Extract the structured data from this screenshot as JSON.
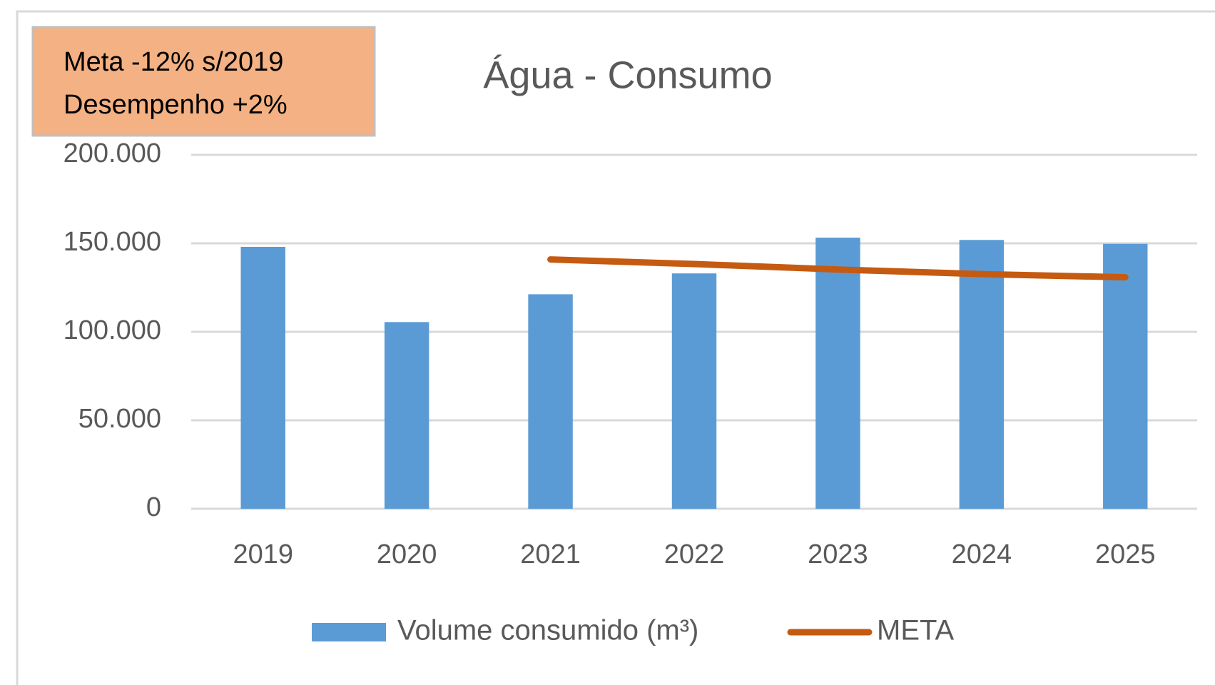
{
  "chart_data": {
    "type": "bar",
    "title": "Água - Consumo",
    "annotations": [
      "Meta -12% s/2019",
      "Desempenho +2%"
    ],
    "categories": [
      "2019",
      "2020",
      "2021",
      "2022",
      "2023",
      "2024",
      "2025"
    ],
    "series": [
      {
        "name": "Volume consumido (m³)",
        "type": "bar",
        "color": "#5b9bd5",
        "values": [
          148000,
          105500,
          121200,
          133000,
          153200,
          151900,
          149700
        ]
      },
      {
        "name": "META",
        "type": "line",
        "color": "#c55a11",
        "values": [
          null,
          null,
          140900,
          138300,
          135200,
          132600,
          130800
        ]
      }
    ],
    "ylim": [
      0,
      200000
    ],
    "yticks": [
      0,
      {
        "value": 50000,
        "label": "50.000"
      },
      {
        "value": 100000,
        "label": "100.000"
      },
      {
        "value": 150000,
        "label": "150.000"
      },
      {
        "value": 200000,
        "label": "200.000"
      }
    ],
    "grid": true,
    "legend": "bottom"
  }
}
